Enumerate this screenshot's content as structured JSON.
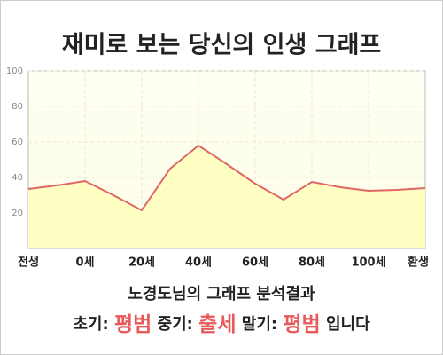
{
  "chart_data": {
    "type": "area",
    "title": "재미로 보는 당신의 인생 그래프",
    "categories": [
      "전생",
      null,
      "0세",
      null,
      "20세",
      null,
      "40세",
      null,
      "60세",
      null,
      "80세",
      null,
      "100세",
      null,
      "환생"
    ],
    "values": [
      33.5,
      35.5,
      38,
      30,
      21.5,
      45,
      58,
      47.5,
      36.5,
      27.5,
      37.5,
      34.5,
      32.5,
      33,
      34
    ],
    "color": "#e06666",
    "fill": "#ffffc4",
    "ylim": [
      0,
      100
    ],
    "yticks": [
      20,
      40,
      60,
      80,
      100
    ],
    "grid": true
  },
  "analysis": {
    "heading": "노경도님의 그래프 분석결과",
    "items": [
      {
        "label": "초기:",
        "value": "평범"
      },
      {
        "label": "중기:",
        "value": "출세"
      },
      {
        "label": "말기:",
        "value": "평범"
      }
    ],
    "suffix": "입니다"
  }
}
